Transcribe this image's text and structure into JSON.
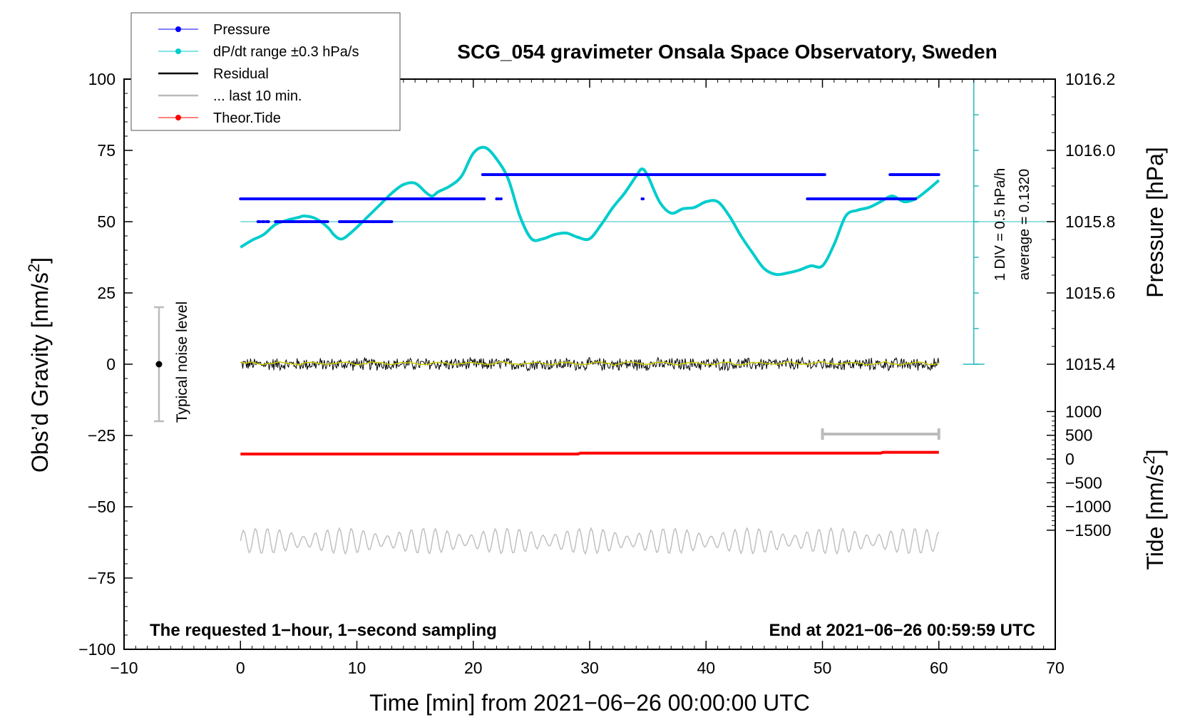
{
  "chart_data": {
    "type": "line",
    "title": "SCG_054 gravimeter Onsala Space Observatory, Sweden",
    "xlabel": "Time [min] from 2021−06−26 00:00:00 UTC",
    "ylabel_main": "Obs’d Gravity [nm/s",
    "ylabel_main_sup": "2",
    "ylabel_main_end": "]",
    "ylabel_pressure": "Pressure [hPa]",
    "ylabel_tide": "Tide [nm/s",
    "ylabel_tide_sup": "2",
    "ylabel_tide_end": "]",
    "xlim": [
      -10,
      70
    ],
    "ylim": [
      -100,
      100
    ],
    "x_ticks": [
      -10,
      0,
      10,
      20,
      30,
      40,
      50,
      60,
      70
    ],
    "x_tick_labels": [
      "−10",
      "0",
      "10",
      "20",
      "30",
      "40",
      "50",
      "60",
      "70"
    ],
    "y_ticks": [
      100,
      75,
      50,
      25,
      0,
      -25,
      -50,
      -75,
      -100
    ],
    "y_tick_labels": [
      "100",
      "75",
      "50",
      "25",
      "0",
      "−25",
      "−50",
      "−75",
      "−100"
    ],
    "pressure_axis": {
      "ticks": [
        1016.2,
        1016.0,
        1015.8,
        1015.6,
        1015.4
      ],
      "tick_labels": [
        "1016.2",
        "1016.0",
        "1015.8",
        "1015.6",
        "1015.4"
      ],
      "gravity_at_1015_8": 50,
      "gravity_per_hpa": 125
    },
    "tide_axis": {
      "ticks": [
        1000,
        500,
        0,
        -500,
        -1000,
        -1500
      ],
      "tick_labels": [
        "1000",
        "500",
        "0",
        "−500",
        "−1000",
        "−1500"
      ],
      "gravity_at_1000": -16.6,
      "gravity_per_unit": 0.01665
    },
    "legend": [
      {
        "label": "Pressure",
        "color": "#0000ff",
        "style": "line-dot"
      },
      {
        "label": "dP/dt range ±0.3 hPa/s",
        "color": "#00cccc",
        "style": "line-dot"
      },
      {
        "label": "Residual",
        "color": "#000000",
        "style": "line"
      },
      {
        "label": "... last 10 min.",
        "color": "#bbbbbb",
        "style": "line"
      },
      {
        "label": "Theor.Tide",
        "color": "#ff0000",
        "style": "line-dot"
      }
    ],
    "series": [
      {
        "name": "dP/dt",
        "color": "#00cccc",
        "x": [
          0,
          1,
          2,
          3,
          4,
          5,
          5.5,
          6.5,
          7.5,
          8,
          8.5,
          9,
          10,
          11,
          12,
          13,
          14,
          15,
          16,
          16.5,
          17,
          18,
          19,
          20,
          21,
          22,
          23,
          24,
          25,
          26,
          27,
          28,
          29,
          30,
          31,
          32,
          33,
          34,
          34.5,
          35,
          36,
          37,
          38,
          39,
          40,
          41,
          42,
          43,
          44,
          45,
          46,
          47,
          48,
          49,
          50,
          51,
          52,
          53,
          54,
          55,
          56,
          57,
          58,
          59,
          60
        ],
        "values": [
          41,
          43.5,
          45.5,
          49,
          50.5,
          51.5,
          52,
          51,
          48,
          45.5,
          44,
          44.5,
          48,
          52,
          56,
          60,
          63,
          63.5,
          60,
          59,
          60.5,
          62.5,
          66,
          74,
          76,
          72,
          65,
          52,
          44,
          44,
          45.5,
          46,
          44.5,
          44,
          49,
          55,
          60,
          66,
          68.5,
          66,
          57,
          53,
          54.5,
          55,
          57,
          57,
          52,
          45,
          39,
          33.5,
          31.5,
          32,
          33,
          34.5,
          34.5,
          42,
          52,
          54,
          55,
          57,
          59,
          57,
          58,
          61,
          64.5
        ]
      },
      {
        "name": "Pressure",
        "color": "#0000ff",
        "points": [
          {
            "x": [
              0,
              21
            ],
            "y": 58
          },
          {
            "x": [
              22,
              22.4
            ],
            "y": 58
          },
          {
            "x": [
              1.5,
              2.5
            ],
            "y": 50
          },
          {
            "x": [
              3,
              7.5
            ],
            "y": 50
          },
          {
            "x": [
              8.5,
              13
            ],
            "y": 50
          },
          {
            "x": [
              20.8,
              50.2
            ],
            "y": 66.5
          },
          {
            "x": [
              34.5,
              34.6
            ],
            "y": 58
          },
          {
            "x": [
              48.7,
              58
            ],
            "y": 58
          },
          {
            "x": [
              55.8,
              60
            ],
            "y": 66.5
          }
        ]
      },
      {
        "name": "Residual",
        "color": "#000000",
        "x_range": [
          0,
          60
        ],
        "center": 0,
        "amplitude": 2.5
      },
      {
        "name": "Residual smoothed",
        "color": "#cccc00",
        "x_range": [
          0,
          60
        ],
        "center": 0.3
      },
      {
        "name": "Theor.Tide",
        "color": "#ff0000",
        "x": [
          0,
          29,
          29.2,
          55,
          55.2,
          60
        ],
        "values": [
          -31.5,
          -31.5,
          -31.2,
          -31.2,
          -30.9,
          -30.9
        ]
      },
      {
        "name": "Residual (offset)",
        "color": "#c0c0c0",
        "x_range": [
          0,
          60
        ],
        "center": -62,
        "amplitude": 4.5
      }
    ],
    "last_10_min_bar": {
      "x": [
        50,
        60
      ],
      "y": -24.5
    },
    "noise_bar": {
      "x": -7,
      "y_range": [
        -20,
        20
      ],
      "center": 0,
      "label": "Typical noise level"
    },
    "pressure_scale": {
      "label_div": "1 DIV = 0.5 hPa/h",
      "label_avg": "average = 0.1320",
      "x": 63,
      "y_top": 100,
      "y_bottom": 0,
      "ref_y": 50
    },
    "annotations": {
      "bottom_left": "The requested 1−hour, 1−second sampling",
      "bottom_right": "End at 2021−06−26 00:59:59 UTC"
    }
  }
}
